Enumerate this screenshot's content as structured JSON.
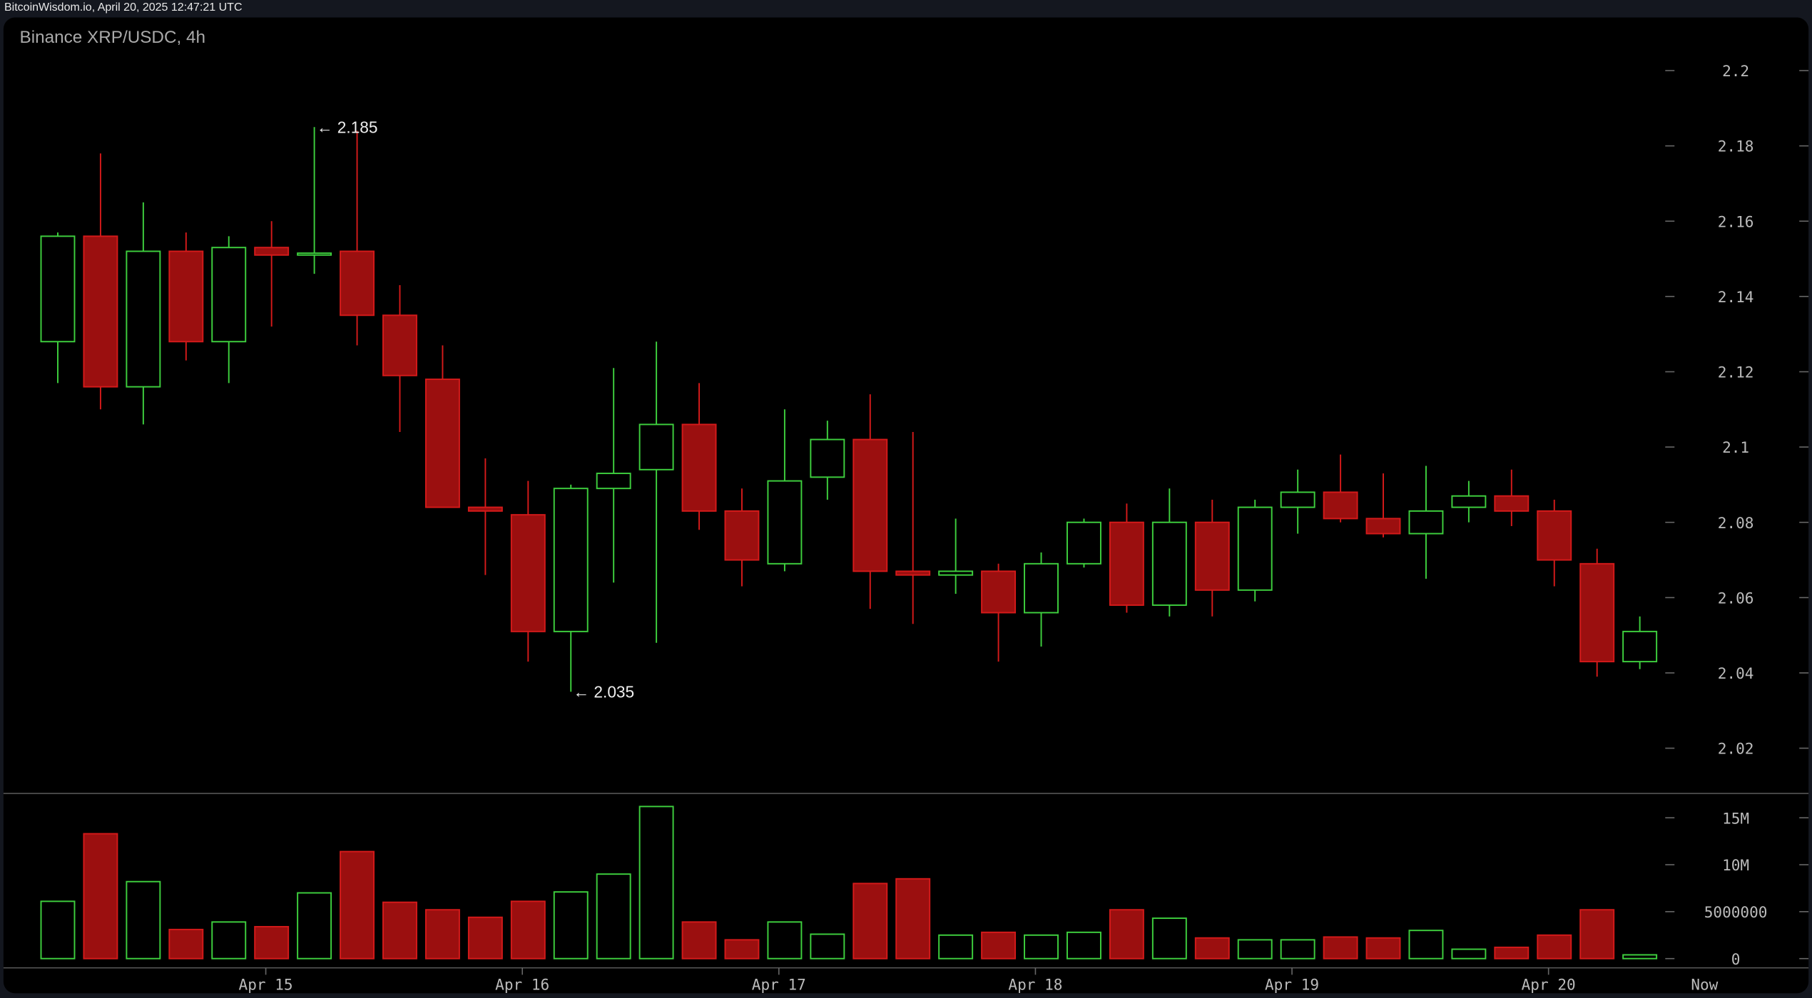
{
  "header": {
    "source": "BitcoinWisdom.io, April 20, 2025 12:47:21 UTC"
  },
  "chart_data": {
    "type": "candlestick",
    "title": "Binance XRP/USDC, 4h",
    "ylim": [
      2.01,
      2.21
    ],
    "yticks": [
      "2.2",
      "2.18",
      "2.16",
      "2.14",
      "2.12",
      "2.1",
      "2.08",
      "2.06",
      "2.04",
      "2.02"
    ],
    "volume_ylim": [
      0,
      17000000
    ],
    "volume_ticks": [
      "15M",
      "10M",
      "5000000",
      "0"
    ],
    "xticks": [
      "Apr 15",
      "Apr 16",
      "Apr 17",
      "Apr 18",
      "Apr 19",
      "Apr 20",
      "Now"
    ],
    "colors": {
      "up": "#3ecf3e",
      "down": "#d41a1a",
      "down_fill": "#9b0f0f",
      "background": "#000000"
    },
    "annotations": [
      {
        "label": "← 2.185",
        "candle": 7
      },
      {
        "label": "← 2.035",
        "candle": 13
      }
    ],
    "candles": [
      {
        "o": 2.128,
        "h": 2.157,
        "l": 2.117,
        "c": 2.156,
        "v": 6.1
      },
      {
        "o": 2.156,
        "h": 2.178,
        "l": 2.11,
        "c": 2.116,
        "v": 13.3
      },
      {
        "o": 2.116,
        "h": 2.165,
        "l": 2.106,
        "c": 2.152,
        "v": 8.2
      },
      {
        "o": 2.152,
        "h": 2.157,
        "l": 2.123,
        "c": 2.128,
        "v": 3.1
      },
      {
        "o": 2.128,
        "h": 2.156,
        "l": 2.117,
        "c": 2.153,
        "v": 3.9
      },
      {
        "o": 2.153,
        "h": 2.16,
        "l": 2.132,
        "c": 2.151,
        "v": 3.4
      },
      {
        "o": 2.151,
        "h": 2.185,
        "l": 2.146,
        "c": 2.1515,
        "v": 7.0
      },
      {
        "o": 2.152,
        "h": 2.184,
        "l": 2.127,
        "c": 2.135,
        "v": 11.4
      },
      {
        "o": 2.135,
        "h": 2.143,
        "l": 2.104,
        "c": 2.119,
        "v": 6.0
      },
      {
        "o": 2.118,
        "h": 2.127,
        "l": 2.084,
        "c": 2.084,
        "v": 5.2
      },
      {
        "o": 2.084,
        "h": 2.097,
        "l": 2.066,
        "c": 2.083,
        "v": 4.4
      },
      {
        "o": 2.082,
        "h": 2.091,
        "l": 2.043,
        "c": 2.051,
        "v": 6.1
      },
      {
        "o": 2.051,
        "h": 2.09,
        "l": 2.035,
        "c": 2.089,
        "v": 7.1
      },
      {
        "o": 2.089,
        "h": 2.121,
        "l": 2.064,
        "c": 2.093,
        "v": 9.0
      },
      {
        "o": 2.094,
        "h": 2.128,
        "l": 2.048,
        "c": 2.106,
        "v": 16.2
      },
      {
        "o": 2.106,
        "h": 2.117,
        "l": 2.078,
        "c": 2.083,
        "v": 3.9
      },
      {
        "o": 2.083,
        "h": 2.089,
        "l": 2.063,
        "c": 2.07,
        "v": 2.0
      },
      {
        "o": 2.069,
        "h": 2.11,
        "l": 2.067,
        "c": 2.091,
        "v": 3.9
      },
      {
        "o": 2.092,
        "h": 2.107,
        "l": 2.086,
        "c": 2.102,
        "v": 2.6
      },
      {
        "o": 2.102,
        "h": 2.114,
        "l": 2.057,
        "c": 2.067,
        "v": 8.0
      },
      {
        "o": 2.067,
        "h": 2.104,
        "l": 2.053,
        "c": 2.066,
        "v": 8.5
      },
      {
        "o": 2.066,
        "h": 2.081,
        "l": 2.061,
        "c": 2.067,
        "v": 2.5
      },
      {
        "o": 2.067,
        "h": 2.069,
        "l": 2.043,
        "c": 2.056,
        "v": 2.8
      },
      {
        "o": 2.056,
        "h": 2.072,
        "l": 2.047,
        "c": 2.069,
        "v": 2.5
      },
      {
        "o": 2.069,
        "h": 2.081,
        "l": 2.068,
        "c": 2.08,
        "v": 2.8
      },
      {
        "o": 2.08,
        "h": 2.085,
        "l": 2.056,
        "c": 2.058,
        "v": 5.2
      },
      {
        "o": 2.058,
        "h": 2.089,
        "l": 2.055,
        "c": 2.08,
        "v": 4.3
      },
      {
        "o": 2.08,
        "h": 2.086,
        "l": 2.055,
        "c": 2.062,
        "v": 2.2
      },
      {
        "o": 2.062,
        "h": 2.086,
        "l": 2.059,
        "c": 2.084,
        "v": 2.0
      },
      {
        "o": 2.084,
        "h": 2.094,
        "l": 2.077,
        "c": 2.088,
        "v": 2.0
      },
      {
        "o": 2.088,
        "h": 2.098,
        "l": 2.08,
        "c": 2.081,
        "v": 2.3
      },
      {
        "o": 2.081,
        "h": 2.093,
        "l": 2.076,
        "c": 2.077,
        "v": 2.2
      },
      {
        "o": 2.077,
        "h": 2.095,
        "l": 2.065,
        "c": 2.083,
        "v": 3.0
      },
      {
        "o": 2.084,
        "h": 2.091,
        "l": 2.08,
        "c": 2.087,
        "v": 1.0
      },
      {
        "o": 2.087,
        "h": 2.094,
        "l": 2.079,
        "c": 2.083,
        "v": 1.2
      },
      {
        "o": 2.083,
        "h": 2.086,
        "l": 2.063,
        "c": 2.07,
        "v": 2.5
      },
      {
        "o": 2.069,
        "h": 2.073,
        "l": 2.039,
        "c": 2.043,
        "v": 5.2
      },
      {
        "o": 2.043,
        "h": 2.055,
        "l": 2.041,
        "c": 2.051,
        "v": 0.4
      }
    ]
  }
}
